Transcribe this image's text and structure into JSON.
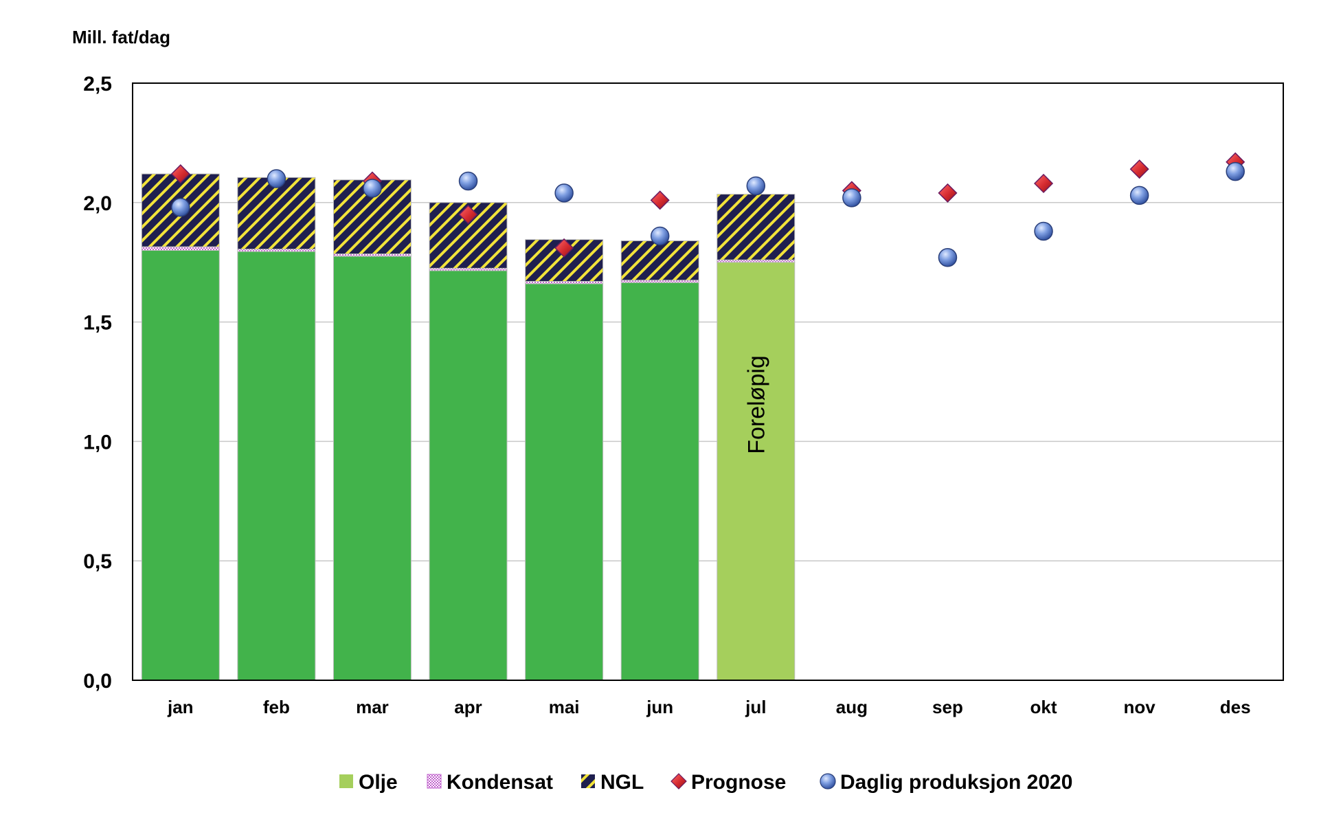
{
  "chart_data": {
    "type": "bar",
    "ylabel": "Mill. fat/dag",
    "ylim": [
      0,
      2.5
    ],
    "yticks": [
      "0,0",
      "0,5",
      "1,0",
      "1,5",
      "2,0",
      "2,5"
    ],
    "ytick_values": [
      0,
      0.5,
      1.0,
      1.5,
      2.0,
      2.5
    ],
    "grid": true,
    "legend_position": "bottom",
    "categories": [
      "jan",
      "feb",
      "mar",
      "apr",
      "mai",
      "jun",
      "jul",
      "aug",
      "sep",
      "okt",
      "nov",
      "des"
    ],
    "stacked_series": [
      {
        "name": "Olje",
        "color": "#42b34b",
        "values": [
          1.8,
          1.795,
          1.775,
          1.715,
          1.66,
          1.665,
          1.75,
          null,
          null,
          null,
          null,
          null
        ]
      },
      {
        "name": "Kondensat",
        "color": "#e8b6ee",
        "values": [
          0.015,
          0.01,
          0.01,
          0.01,
          0.01,
          0.01,
          0.01,
          null,
          null,
          null,
          null,
          null
        ]
      },
      {
        "name": "NGL",
        "color": "#1f1f4f",
        "values": [
          0.305,
          0.3,
          0.31,
          0.275,
          0.175,
          0.165,
          0.275,
          null,
          null,
          null,
          null,
          null
        ]
      }
    ],
    "provisional_index": 6,
    "provisional_color": "#a5cf5c",
    "provisional_label": "Foreløpig",
    "markers": [
      {
        "name": "Prognose",
        "shape": "diamond",
        "color": "#d42a2f",
        "values": [
          2.12,
          null,
          2.09,
          1.95,
          1.81,
          2.01,
          null,
          2.05,
          2.04,
          2.08,
          2.14,
          2.17
        ]
      },
      {
        "name": "Daglig produksjon 2020",
        "shape": "circle",
        "color": "#5c80d2",
        "values": [
          1.98,
          2.1,
          2.06,
          2.09,
          2.04,
          1.86,
          2.07,
          2.02,
          1.77,
          1.88,
          2.03,
          2.13
        ]
      }
    ],
    "legend": [
      {
        "name": "Olje",
        "kind": "solid",
        "color": "#a5cf5c"
      },
      {
        "name": "Kondensat",
        "kind": "checker",
        "color": "#c060cc"
      },
      {
        "name": "NGL",
        "kind": "hatch",
        "color": "#1f1f4f"
      },
      {
        "name": "Prognose",
        "kind": "diamond",
        "color": "#d42a2f"
      },
      {
        "name": "Daglig produksjon 2020",
        "kind": "circle",
        "color": "#5c80d2"
      }
    ]
  }
}
